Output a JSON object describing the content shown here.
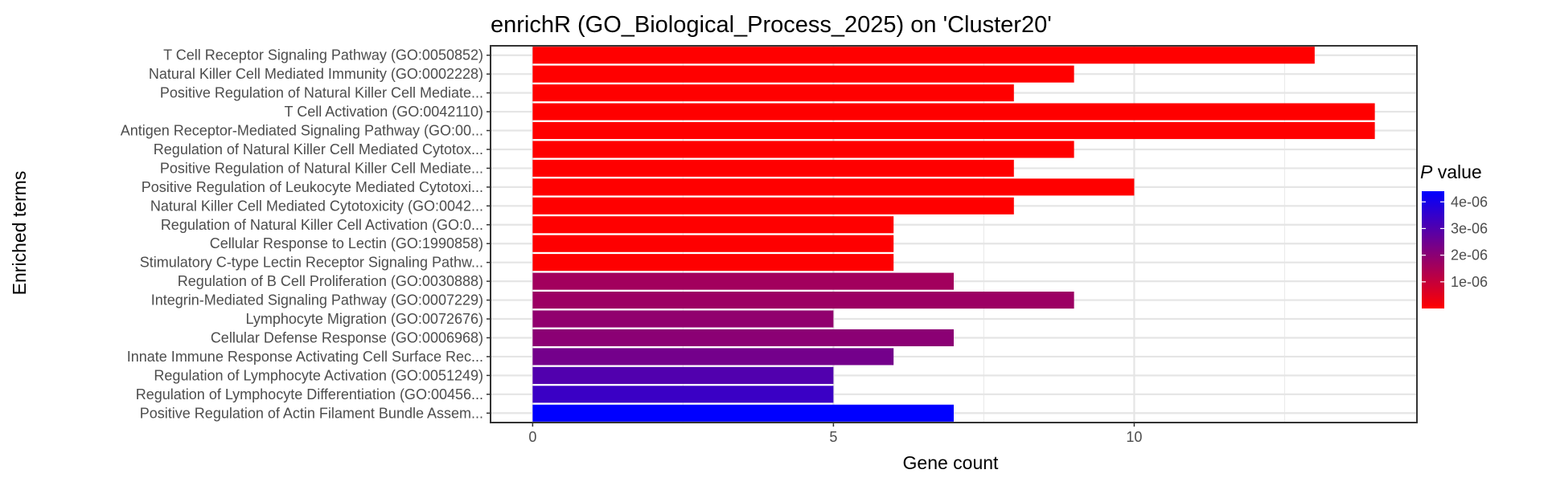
{
  "chart_data": {
    "type": "bar",
    "orientation": "horizontal",
    "title": "enrichR (GO_Biological_Process_2025) on 'Cluster20'",
    "xlabel": "Gene count",
    "ylabel": "Enriched terms",
    "xlim": [
      -0.7,
      14.7
    ],
    "xticks": [
      0,
      5,
      10
    ],
    "grid": true,
    "categories": [
      "T Cell Receptor Signaling Pathway (GO:0050852)",
      "Natural Killer Cell Mediated Immunity (GO:0002228)",
      "Positive Regulation of Natural Killer Cell Mediate...",
      "T Cell Activation (GO:0042110)",
      "Antigen Receptor-Mediated Signaling Pathway (GO:00...",
      "Regulation of Natural Killer Cell Mediated Cytotox...",
      "Positive Regulation of Natural Killer Cell Mediate...",
      "Positive Regulation of Leukocyte Mediated Cytotoxi...",
      "Natural Killer Cell Mediated Cytotoxicity (GO:0042...",
      "Regulation of Natural Killer Cell Activation (GO:0...",
      "Cellular Response to Lectin (GO:1990858)",
      "Stimulatory C-type Lectin Receptor Signaling Pathw...",
      "Regulation of B Cell Proliferation (GO:0030888)",
      "Integrin-Mediated Signaling Pathway (GO:0007229)",
      "Lymphocyte Migration (GO:0072676)",
      "Cellular Defense Response (GO:0006968)",
      "Innate Immune Response Activating Cell Surface Rec...",
      "Regulation of Lymphocyte Activation (GO:0051249)",
      "Regulation of Lymphocyte Differentiation (GO:00456...",
      "Positive Regulation of Actin Filament Bundle Assem..."
    ],
    "values": [
      13,
      9,
      8,
      14,
      14,
      9,
      8,
      10,
      8,
      6,
      6,
      6,
      7,
      9,
      5,
      7,
      6,
      5,
      5,
      7
    ],
    "p_values": [
      1e-09,
      1e-09,
      1e-09,
      1e-09,
      1e-09,
      1e-09,
      1e-09,
      1e-09,
      1e-09,
      1e-09,
      2e-08,
      2e-08,
      1.6e-06,
      1.7e-06,
      1.9e-06,
      2e-06,
      2.4e-06,
      3e-06,
      3.4e-06,
      4.4e-06
    ],
    "legend": {
      "title_italic": "P",
      "title_rest": " value",
      "position": "right",
      "ticks": [
        4e-06,
        3e-06,
        2e-06,
        1e-06
      ],
      "tick_labels": [
        "4e-06",
        "3e-06",
        "2e-06",
        "1e-06"
      ],
      "range": [
        0,
        4.4e-06
      ],
      "color_low": "#ff0000",
      "color_high": "#0000ff"
    }
  }
}
